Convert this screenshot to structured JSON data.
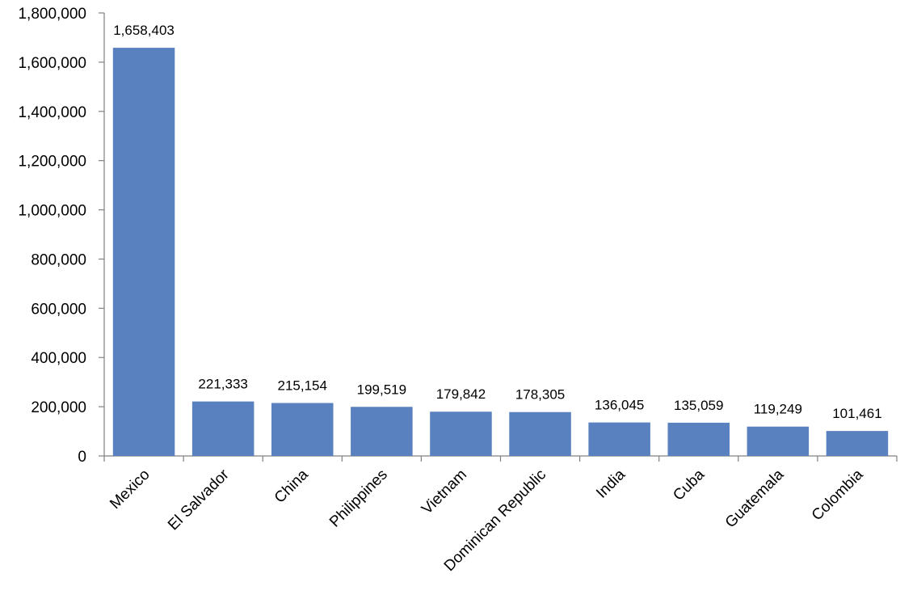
{
  "chart_data": {
    "type": "bar",
    "title": "",
    "xlabel": "",
    "ylabel": "",
    "categories": [
      "Mexico",
      "El Salvador",
      "China",
      "Philippines",
      "Vietnam",
      "Dominican Republic",
      "India",
      "Cuba",
      "Guatemala",
      "Colombia"
    ],
    "values": [
      1658403,
      221333,
      215154,
      199519,
      179842,
      178305,
      136045,
      135059,
      119249,
      101461
    ],
    "data_labels": [
      "1,658,403",
      "221,333",
      "215,154",
      "199,519",
      "179,842",
      "178,305",
      "136,045",
      "135,059",
      "119,249",
      "101,461"
    ],
    "ylim": [
      0,
      1800000
    ],
    "y_ticks": [
      0,
      200000,
      400000,
      600000,
      800000,
      1000000,
      1200000,
      1400000,
      1600000,
      1800000
    ],
    "y_tick_labels": [
      "0",
      "200,000",
      "400,000",
      "600,000",
      "800,000",
      "1,000,000",
      "1,200,000",
      "1,400,000",
      "1,600,000",
      "1,800,000"
    ],
    "bar_color": "#5a81bf",
    "axis_color": "#808080",
    "grid": false,
    "legend": "none"
  }
}
